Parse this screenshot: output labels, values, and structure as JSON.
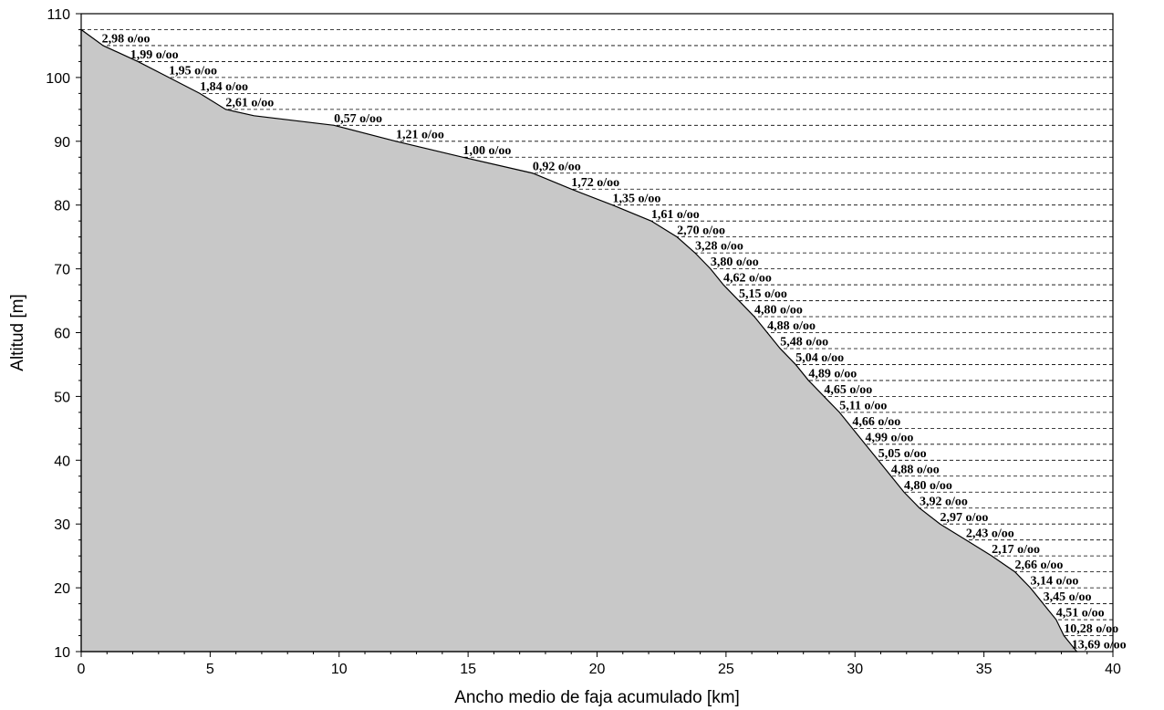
{
  "chart_data": {
    "type": "area",
    "title": "",
    "xlabel": "Ancho medio de faja acumulado [km]",
    "ylabel": "Altitud [m]",
    "xlim": [
      0,
      40
    ],
    "ylim": [
      10,
      110
    ],
    "xticks": [
      0,
      5,
      10,
      15,
      20,
      25,
      30,
      35,
      40
    ],
    "yticks": [
      10,
      20,
      30,
      40,
      50,
      60,
      70,
      80,
      90,
      100,
      110
    ],
    "grid": "horizontal dashed",
    "fill_color": "#c8c8c8",
    "series": [
      {
        "x": [
          0,
          0.85,
          2.2,
          3.4,
          4.6,
          5.6,
          6.7,
          9.8,
          12.2,
          14.8,
          17.5,
          19.0,
          20.6,
          22.1,
          23.1,
          23.8,
          24.4,
          24.9,
          25.5,
          26.1,
          26.6,
          27.1,
          27.7,
          28.2,
          28.8,
          29.4,
          29.9,
          30.4,
          30.9,
          31.4,
          31.9,
          32.5,
          33.3,
          34.3,
          35.3,
          36.2,
          36.8,
          37.3,
          37.8,
          38.1,
          38.4,
          38.6
        ],
        "y": [
          107.5,
          105.0,
          102.5,
          100.0,
          97.5,
          95.0,
          94.0,
          92.5,
          90.0,
          87.5,
          85.0,
          82.5,
          80.0,
          77.5,
          75.0,
          72.5,
          70.0,
          67.5,
          65.0,
          62.5,
          60.0,
          57.5,
          55.0,
          52.5,
          50.0,
          47.5,
          45.0,
          42.5,
          40.0,
          37.5,
          35.0,
          32.5,
          30.0,
          27.5,
          25.0,
          22.5,
          20.0,
          17.5,
          15.0,
          12.5,
          11.0,
          10.0
        ]
      }
    ],
    "annotations": [
      {
        "text": "2,98 o/oo",
        "x": 0.8,
        "y": 106.2
      },
      {
        "text": "1,99 o/oo",
        "x": 1.9,
        "y": 103.7
      },
      {
        "text": "1,95 o/oo",
        "x": 3.4,
        "y": 101.2
      },
      {
        "text": "1,84 o/oo",
        "x": 4.6,
        "y": 98.7
      },
      {
        "text": "2,61 o/oo",
        "x": 5.6,
        "y": 96.2
      },
      {
        "text": "0,57 o/oo",
        "x": 9.8,
        "y": 93.7
      },
      {
        "text": "1,21 o/oo",
        "x": 12.2,
        "y": 91.2
      },
      {
        "text": "1,00 o/oo",
        "x": 14.8,
        "y": 88.7
      },
      {
        "text": "0,92 o/oo",
        "x": 17.5,
        "y": 86.2
      },
      {
        "text": "1,72 o/oo",
        "x": 19.0,
        "y": 83.7
      },
      {
        "text": "1,35 o/oo",
        "x": 20.6,
        "y": 81.2
      },
      {
        "text": "1,61 o/oo",
        "x": 22.1,
        "y": 78.7
      },
      {
        "text": "2,70 o/oo",
        "x": 23.1,
        "y": 76.2
      },
      {
        "text": "3,28 o/oo",
        "x": 23.8,
        "y": 73.7
      },
      {
        "text": "3,80 o/oo",
        "x": 24.4,
        "y": 71.2
      },
      {
        "text": "4,62 o/oo",
        "x": 24.9,
        "y": 68.7
      },
      {
        "text": "5,15 o/oo",
        "x": 25.5,
        "y": 66.2
      },
      {
        "text": "4,80 o/oo",
        "x": 26.1,
        "y": 63.7
      },
      {
        "text": "4,88 o/oo",
        "x": 26.6,
        "y": 61.2
      },
      {
        "text": "5,48 o/oo",
        "x": 27.1,
        "y": 58.7
      },
      {
        "text": "5,04 o/oo",
        "x": 27.7,
        "y": 56.2
      },
      {
        "text": "4,89 o/oo",
        "x": 28.2,
        "y": 53.7
      },
      {
        "text": "4,65 o/oo",
        "x": 28.8,
        "y": 51.2
      },
      {
        "text": "5,11 o/oo",
        "x": 29.4,
        "y": 48.7
      },
      {
        "text": "4,66 o/oo",
        "x": 29.9,
        "y": 46.2
      },
      {
        "text": "4,99 o/oo",
        "x": 30.4,
        "y": 43.7
      },
      {
        "text": "5,05 o/oo",
        "x": 30.9,
        "y": 41.2
      },
      {
        "text": "4,88 o/oo",
        "x": 31.4,
        "y": 38.7
      },
      {
        "text": "4,80 o/oo",
        "x": 31.9,
        "y": 36.2
      },
      {
        "text": "3,92 o/oo",
        "x": 32.5,
        "y": 33.7
      },
      {
        "text": "2,97 o/oo",
        "x": 33.3,
        "y": 31.2
      },
      {
        "text": "2,43 o/oo",
        "x": 34.3,
        "y": 28.7
      },
      {
        "text": "2,17 o/oo",
        "x": 35.3,
        "y": 26.2
      },
      {
        "text": "2,66 o/oo",
        "x": 36.2,
        "y": 23.7
      },
      {
        "text": "3,14 o/oo",
        "x": 36.8,
        "y": 21.2
      },
      {
        "text": "3,45 o/oo",
        "x": 37.3,
        "y": 18.7
      },
      {
        "text": "4,51 o/oo",
        "x": 37.8,
        "y": 16.2
      },
      {
        "text": "10,28 o/oo",
        "x": 38.1,
        "y": 13.7
      },
      {
        "text": "13,69 o/oo",
        "x": 38.4,
        "y": 11.2
      }
    ]
  }
}
